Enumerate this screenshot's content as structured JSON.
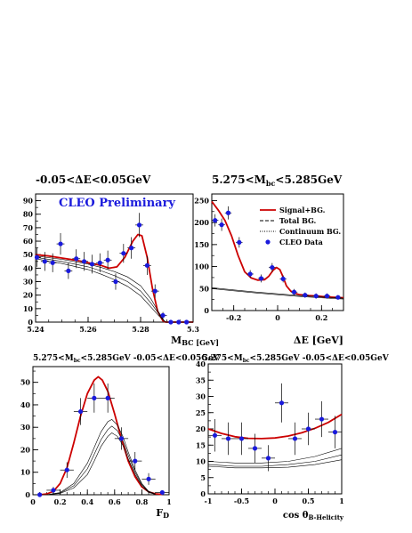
{
  "colors": {
    "fit": "#cc0000",
    "data_point": "#1a1adc",
    "bg_line": "#000000",
    "annotation": "#1a1adc"
  },
  "chart_data": [
    {
      "id": "mbc",
      "type": "scatter",
      "title": "-0.05<ΔE<0.05GeV",
      "annotation": "CLEO Preliminary",
      "xlabel": "M",
      "xlabel_sub": "BC [GeV]",
      "ylabel": "",
      "xlim": [
        5.24,
        5.3
      ],
      "ylim": [
        0,
        95
      ],
      "xticks": [
        {
          "v": 5.24,
          "label": "5.24"
        },
        {
          "v": 5.26,
          "label": "5.26"
        },
        {
          "v": 5.28,
          "label": "5.28"
        },
        {
          "v": 5.3,
          "label": "5.3"
        }
      ],
      "yticks": [
        {
          "v": 0,
          "label": "0"
        },
        {
          "v": 10,
          "label": "10"
        },
        {
          "v": 20,
          "label": "20"
        },
        {
          "v": 30,
          "label": "30"
        },
        {
          "v": 40,
          "label": "40"
        },
        {
          "v": 50,
          "label": "50"
        },
        {
          "v": 60,
          "label": "60"
        },
        {
          "v": 70,
          "label": "70"
        },
        {
          "v": 80,
          "label": "80"
        },
        {
          "v": 90,
          "label": "90"
        }
      ],
      "xminor": 0.005,
      "yminor": 5,
      "points": [
        {
          "x": 5.2405,
          "y": 48,
          "ey": 7,
          "ex": 0.0015
        },
        {
          "x": 5.2435,
          "y": 45,
          "ey": 7,
          "ex": 0.0015
        },
        {
          "x": 5.2465,
          "y": 44,
          "ey": 7,
          "ex": 0.0015
        },
        {
          "x": 5.2495,
          "y": 58,
          "ey": 8,
          "ex": 0.0015
        },
        {
          "x": 5.2525,
          "y": 38,
          "ey": 6,
          "ex": 0.0015
        },
        {
          "x": 5.2555,
          "y": 47,
          "ey": 7,
          "ex": 0.0015
        },
        {
          "x": 5.2585,
          "y": 45,
          "ey": 7,
          "ex": 0.0015
        },
        {
          "x": 5.2615,
          "y": 43,
          "ey": 7,
          "ex": 0.0015
        },
        {
          "x": 5.2645,
          "y": 44,
          "ey": 7,
          "ex": 0.0015
        },
        {
          "x": 5.2675,
          "y": 46,
          "ey": 7,
          "ex": 0.0015
        },
        {
          "x": 5.2705,
          "y": 30,
          "ey": 6,
          "ex": 0.0015
        },
        {
          "x": 5.2735,
          "y": 51,
          "ey": 7,
          "ex": 0.0015
        },
        {
          "x": 5.2765,
          "y": 55,
          "ey": 8,
          "ex": 0.0015
        },
        {
          "x": 5.2795,
          "y": 72,
          "ey": 9,
          "ex": 0.0015
        },
        {
          "x": 5.2825,
          "y": 42,
          "ey": 7,
          "ex": 0.0015
        },
        {
          "x": 5.2855,
          "y": 23,
          "ey": 5,
          "ex": 0.0015
        },
        {
          "x": 5.2885,
          "y": 5,
          "ey": 2.5,
          "ex": 0.0015
        },
        {
          "x": 5.2915,
          "y": 0,
          "ey": 1,
          "ex": 0.0015
        },
        {
          "x": 5.2945,
          "y": 0,
          "ey": 1,
          "ex": 0.0015
        },
        {
          "x": 5.2975,
          "y": 0,
          "ey": 1,
          "ex": 0.0015
        }
      ],
      "curves": [
        {
          "style": "fit",
          "x": [
            5.24,
            5.245,
            5.25,
            5.255,
            5.26,
            5.265,
            5.268,
            5.271,
            5.274,
            5.277,
            5.279,
            5.2805,
            5.2825,
            5.2845,
            5.2865,
            5.2885,
            5.2895,
            5.3
          ],
          "y": [
            50,
            49,
            47.5,
            46,
            44,
            42,
            40,
            41,
            48,
            60,
            65,
            64,
            48,
            25,
            8,
            1,
            0,
            0
          ]
        },
        {
          "style": "bg",
          "x": [
            5.24,
            5.25,
            5.26,
            5.265,
            5.27,
            5.275,
            5.28,
            5.284,
            5.287,
            5.289,
            5.2895,
            5.3
          ],
          "y": [
            49,
            46.5,
            43,
            40.5,
            37.5,
            33.5,
            27,
            17,
            7,
            1,
            0,
            0
          ]
        },
        {
          "style": "bg",
          "x": [
            5.24,
            5.25,
            5.26,
            5.265,
            5.27,
            5.275,
            5.28,
            5.284,
            5.287,
            5.289,
            5.2895,
            5.3
          ],
          "y": [
            48,
            45,
            41,
            38,
            34.5,
            30,
            23,
            14,
            6,
            1,
            0,
            0
          ]
        },
        {
          "style": "bg",
          "x": [
            5.24,
            5.25,
            5.26,
            5.265,
            5.27,
            5.275,
            5.28,
            5.284,
            5.287,
            5.289,
            5.2895,
            5.3
          ],
          "y": [
            47,
            43.5,
            39,
            35.5,
            31.5,
            26.5,
            19.5,
            11,
            4.5,
            1,
            0,
            0
          ]
        }
      ]
    },
    {
      "id": "de",
      "type": "scatter",
      "title": "5.275<M",
      "title_sub": "bc",
      "title_tail": "<5.285GeV",
      "xlabel": "ΔE [GeV]",
      "ylabel": "",
      "xlim": [
        -0.3,
        0.3
      ],
      "ylim": [
        0,
        265
      ],
      "xticks": [
        {
          "v": -0.2,
          "label": "-0.2"
        },
        {
          "v": 0,
          "label": "0"
        },
        {
          "v": 0.2,
          "label": "0.2"
        }
      ],
      "yticks": [
        {
          "v": 0,
          "label": "0"
        },
        {
          "v": 50,
          "label": "50"
        },
        {
          "v": 100,
          "label": "100"
        },
        {
          "v": 150,
          "label": "150"
        },
        {
          "v": 200,
          "label": "200"
        },
        {
          "v": 250,
          "label": "250"
        }
      ],
      "xminor": 0.05,
      "yminor": 25,
      "legend": [
        {
          "label": "Signal+BG.",
          "style": "fit"
        },
        {
          "label": "Total BG.",
          "style": "dashed"
        },
        {
          "label": "Continuum BG.",
          "style": "dotted"
        },
        {
          "label": "CLEO Data",
          "style": "marker"
        }
      ],
      "points": [
        {
          "x": -0.285,
          "y": 205,
          "ey": 14,
          "ex": 0.015
        },
        {
          "x": -0.255,
          "y": 195,
          "ey": 14,
          "ex": 0.015
        },
        {
          "x": -0.225,
          "y": 222,
          "ey": 15,
          "ex": 0.015
        },
        {
          "x": -0.175,
          "y": 155,
          "ey": 12,
          "ex": 0.015
        },
        {
          "x": -0.125,
          "y": 83,
          "ey": 9,
          "ex": 0.015
        },
        {
          "x": -0.075,
          "y": 73,
          "ey": 9,
          "ex": 0.015
        },
        {
          "x": -0.025,
          "y": 98,
          "ey": 10,
          "ex": 0.015
        },
        {
          "x": 0.025,
          "y": 72,
          "ey": 8,
          "ex": 0.015
        },
        {
          "x": 0.075,
          "y": 42,
          "ey": 7,
          "ex": 0.015
        },
        {
          "x": 0.125,
          "y": 35,
          "ey": 6,
          "ex": 0.015
        },
        {
          "x": 0.175,
          "y": 33,
          "ey": 6,
          "ex": 0.015
        },
        {
          "x": 0.225,
          "y": 33,
          "ey": 6,
          "ex": 0.015
        },
        {
          "x": 0.275,
          "y": 30,
          "ey": 5,
          "ex": 0.015
        }
      ],
      "curves": [
        {
          "style": "fit",
          "x": [
            -0.3,
            -0.27,
            -0.24,
            -0.21,
            -0.18,
            -0.15,
            -0.12,
            -0.09,
            -0.06,
            -0.04,
            -0.02,
            -0.005,
            0.01,
            0.025,
            0.04,
            0.06,
            0.08,
            0.1,
            0.14,
            0.18,
            0.22,
            0.26,
            0.3
          ],
          "y": [
            248,
            228,
            205,
            170,
            125,
            88,
            74,
            69,
            70,
            78,
            92,
            98,
            93,
            76,
            56,
            44,
            39,
            36,
            34,
            33,
            31,
            30,
            29
          ]
        },
        {
          "style": "bg",
          "x": [
            -0.3,
            -0.2,
            -0.1,
            0,
            0.1,
            0.2,
            0.3
          ],
          "y": [
            52,
            47,
            42,
            38,
            34,
            31,
            28
          ]
        },
        {
          "style": "bg",
          "x": [
            -0.3,
            -0.2,
            -0.1,
            0,
            0.1,
            0.2,
            0.3
          ],
          "y": [
            50,
            45,
            40,
            36,
            32,
            29,
            26
          ]
        }
      ]
    },
    {
      "id": "fd",
      "type": "scatter",
      "title": "5.275<M",
      "title_sub": "bc",
      "title_tail": "<5.285GeV  -0.05<ΔE<0.05GeV",
      "xlabel": "F",
      "xlabel_sub": "D",
      "ylabel": "",
      "xlim": [
        0,
        1
      ],
      "ylim": [
        0,
        57
      ],
      "xticks": [
        {
          "v": 0,
          "label": "0"
        },
        {
          "v": 0.2,
          "label": "0.2"
        },
        {
          "v": 0.4,
          "label": "0.4"
        },
        {
          "v": 0.6,
          "label": "0.6"
        },
        {
          "v": 0.8,
          "label": "0.8"
        },
        {
          "v": 1,
          "label": "1"
        }
      ],
      "yticks": [
        {
          "v": 0,
          "label": "0"
        },
        {
          "v": 10,
          "label": "10"
        },
        {
          "v": 20,
          "label": "20"
        },
        {
          "v": 30,
          "label": "30"
        },
        {
          "v": 40,
          "label": "40"
        },
        {
          "v": 50,
          "label": "50"
        }
      ],
      "xminor": 0.05,
      "yminor": 5,
      "points": [
        {
          "x": 0.05,
          "y": 0,
          "ey": 0.8,
          "ex": 0.05
        },
        {
          "x": 0.15,
          "y": 2,
          "ey": 1.5,
          "ex": 0.05
        },
        {
          "x": 0.25,
          "y": 11,
          "ey": 3.5,
          "ex": 0.05
        },
        {
          "x": 0.35,
          "y": 37,
          "ey": 6,
          "ex": 0.05
        },
        {
          "x": 0.45,
          "y": 43,
          "ey": 6.5,
          "ex": 0.05
        },
        {
          "x": 0.55,
          "y": 43,
          "ey": 6.5,
          "ex": 0.05
        },
        {
          "x": 0.65,
          "y": 25,
          "ey": 5,
          "ex": 0.05
        },
        {
          "x": 0.75,
          "y": 15,
          "ey": 4,
          "ex": 0.05
        },
        {
          "x": 0.85,
          "y": 7,
          "ey": 2.6,
          "ex": 0.05
        },
        {
          "x": 0.95,
          "y": 1,
          "ey": 1,
          "ex": 0.05
        }
      ],
      "curves": [
        {
          "style": "fit",
          "x": [
            0.05,
            0.1,
            0.15,
            0.2,
            0.25,
            0.3,
            0.35,
            0.4,
            0.45,
            0.48,
            0.51,
            0.55,
            0.6,
            0.65,
            0.7,
            0.75,
            0.8,
            0.85,
            0.9,
            0.95
          ],
          "y": [
            0,
            0.3,
            1.5,
            5,
            12,
            23,
            35,
            45,
            51,
            52.5,
            51,
            46,
            36,
            25,
            15,
            8,
            3.5,
            1.3,
            0.4,
            0.1
          ]
        },
        {
          "style": "bg",
          "x": [
            0.1,
            0.2,
            0.3,
            0.4,
            0.45,
            0.5,
            0.55,
            0.58,
            0.62,
            0.66,
            0.7,
            0.75,
            0.8,
            0.85,
            0.9
          ],
          "y": [
            0,
            1,
            5,
            14,
            21,
            28,
            32.5,
            33.5,
            31,
            26,
            19,
            11,
            5,
            1.5,
            0.3
          ]
        },
        {
          "style": "bg",
          "x": [
            0.1,
            0.2,
            0.3,
            0.4,
            0.45,
            0.5,
            0.55,
            0.58,
            0.62,
            0.66,
            0.7,
            0.75,
            0.8,
            0.85,
            0.9
          ],
          "y": [
            0,
            0.8,
            4,
            11.5,
            18,
            24.5,
            29,
            30.5,
            28.5,
            24,
            17.5,
            10,
            4.5,
            1.3,
            0.3
          ]
        },
        {
          "style": "bg",
          "x": [
            0.1,
            0.2,
            0.3,
            0.4,
            0.45,
            0.5,
            0.55,
            0.58,
            0.62,
            0.66,
            0.7,
            0.75,
            0.8,
            0.85,
            0.9
          ],
          "y": [
            0,
            0.6,
            3,
            9,
            15,
            21.5,
            26,
            27.5,
            26,
            22,
            16,
            9,
            4,
            1,
            0.2
          ]
        }
      ]
    },
    {
      "id": "cos",
      "type": "scatter",
      "title": "5.275<M",
      "title_sub": "bc",
      "title_tail": "<5.285GeV  -0.05<ΔE<0.05GeV",
      "xlabel": "cos θ",
      "xlabel_sub": "B-Helicity",
      "ylabel": "",
      "xlim": [
        -1,
        1
      ],
      "ylim": [
        0,
        40
      ],
      "xticks": [
        {
          "v": -1,
          "label": "-1"
        },
        {
          "v": -0.5,
          "label": "-0.5"
        },
        {
          "v": 0,
          "label": "0"
        },
        {
          "v": 0.5,
          "label": "0.5"
        },
        {
          "v": 1,
          "label": "1"
        }
      ],
      "yticks": [
        {
          "v": 0,
          "label": "0"
        },
        {
          "v": 5,
          "label": "5"
        },
        {
          "v": 10,
          "label": "10"
        },
        {
          "v": 15,
          "label": "15"
        },
        {
          "v": 20,
          "label": "20"
        },
        {
          "v": 25,
          "label": "25"
        },
        {
          "v": 30,
          "label": "30"
        },
        {
          "v": 35,
          "label": "35"
        },
        {
          "v": 40,
          "label": "40"
        }
      ],
      "xminor": 0.1,
      "yminor": 2.5,
      "points": [
        {
          "x": -0.9,
          "y": 18,
          "ey": 5,
          "ex": 0.1
        },
        {
          "x": -0.7,
          "y": 17,
          "ey": 5,
          "ex": 0.1
        },
        {
          "x": -0.5,
          "y": 17,
          "ey": 5,
          "ex": 0.1
        },
        {
          "x": -0.3,
          "y": 14,
          "ey": 4.5,
          "ex": 0.1
        },
        {
          "x": -0.1,
          "y": 11,
          "ey": 4,
          "ex": 0.1
        },
        {
          "x": 0.1,
          "y": 28,
          "ey": 6,
          "ex": 0.1
        },
        {
          "x": 0.3,
          "y": 17,
          "ey": 5,
          "ex": 0.1
        },
        {
          "x": 0.5,
          "y": 20,
          "ey": 5,
          "ex": 0.1
        },
        {
          "x": 0.7,
          "y": 23,
          "ey": 5.5,
          "ex": 0.1
        },
        {
          "x": 0.9,
          "y": 19,
          "ey": 5,
          "ex": 0.1
        }
      ],
      "curves": [
        {
          "style": "fit",
          "x": [
            -1,
            -0.8,
            -0.6,
            -0.4,
            -0.2,
            0,
            0.2,
            0.4,
            0.6,
            0.8,
            1
          ],
          "y": [
            20,
            18.6,
            17.6,
            17.1,
            17,
            17.2,
            17.8,
            18.8,
            20.2,
            22,
            24.5
          ]
        },
        {
          "style": "bg",
          "x": [
            -1,
            -0.6,
            -0.2,
            0.2,
            0.6,
            1
          ],
          "y": [
            10,
            9.5,
            9.5,
            10,
            11.5,
            14
          ]
        },
        {
          "style": "bg",
          "x": [
            -1,
            -0.6,
            -0.2,
            0.2,
            0.6,
            1
          ],
          "y": [
            9,
            8.5,
            8.5,
            9,
            10,
            12
          ]
        },
        {
          "style": "bg",
          "x": [
            -1,
            -0.6,
            -0.2,
            0.2,
            0.6,
            1
          ],
          "y": [
            8.5,
            8,
            8,
            8.2,
            9,
            10.5
          ]
        }
      ]
    }
  ]
}
